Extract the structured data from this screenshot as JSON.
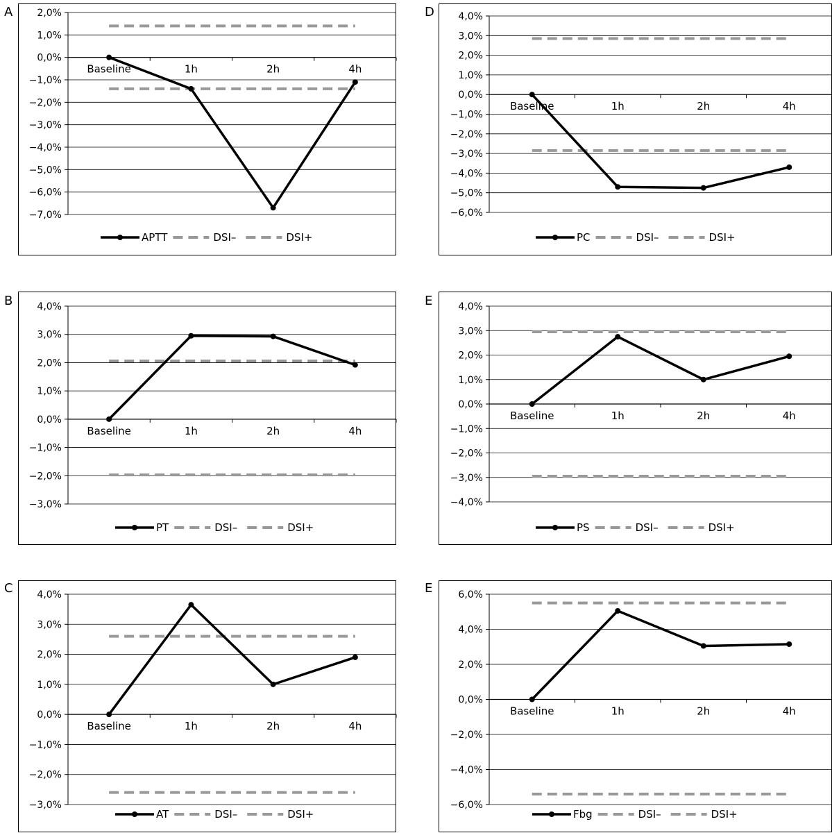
{
  "chart_data": [
    {
      "panel": "A",
      "type": "line",
      "categories": [
        "Baseline",
        "1h",
        "2h",
        "4h"
      ],
      "yticks": [
        "2,0%",
        "1,0%",
        "0,0%",
        "−1,0%",
        "−2,0%",
        "−3,0%",
        "−4,0%",
        "−5,0%",
        "−6,0%",
        "−7,0%"
      ],
      "ylim": [
        -7,
        2
      ],
      "series": [
        {
          "name": "APTT",
          "values": [
            0.0,
            -1.4,
            -6.7,
            -1.1
          ],
          "color": "#000000"
        }
      ],
      "refs": [
        {
          "name": "DSI–",
          "value": -1.4,
          "color": "#999999"
        },
        {
          "name": "DSI+",
          "value": 1.4,
          "color": "#999999"
        }
      ]
    },
    {
      "panel": "B",
      "type": "line",
      "categories": [
        "Baseline",
        "1h",
        "2h",
        "4h"
      ],
      "yticks": [
        "4,0%",
        "3,0%",
        "2,0%",
        "1,0%",
        "0,0%",
        "−1,0%",
        "−2,0%",
        "−3,0%"
      ],
      "ylim": [
        -3,
        4
      ],
      "series": [
        {
          "name": "PT",
          "values": [
            0.0,
            2.95,
            2.93,
            1.92
          ],
          "color": "#000000"
        }
      ],
      "refs": [
        {
          "name": "DSI–",
          "value": -1.97,
          "color": "#999999"
        },
        {
          "name": "DSI+",
          "value": 2.06,
          "color": "#999999"
        }
      ]
    },
    {
      "panel": "C",
      "type": "line",
      "categories": [
        "Baseline",
        "1h",
        "2h",
        "4h"
      ],
      "yticks": [
        "4,0%",
        "3,0%",
        "2,0%",
        "1,0%",
        "0,0%",
        "−1,0%",
        "−2,0%",
        "−3,0%"
      ],
      "ylim": [
        -3,
        4
      ],
      "series": [
        {
          "name": "AT",
          "values": [
            0.0,
            3.65,
            1.0,
            1.9
          ],
          "color": "#000000"
        }
      ],
      "refs": [
        {
          "name": "DSI–",
          "value": -2.6,
          "color": "#999999"
        },
        {
          "name": "DSI+",
          "value": 2.6,
          "color": "#999999"
        }
      ]
    },
    {
      "panel": "D",
      "type": "line",
      "categories": [
        "Baseline",
        "1h",
        "2h",
        "4h"
      ],
      "yticks": [
        "4,0%",
        "3,0%",
        "2,0%",
        "1,0%",
        "0,0%",
        "−1,0%",
        "−2,0%",
        "−3,0%",
        "−4,0%",
        "−5,0%",
        "−6,0%"
      ],
      "ylim": [
        -6,
        4
      ],
      "series": [
        {
          "name": "PC",
          "values": [
            0.0,
            -4.7,
            -4.75,
            -3.7
          ],
          "color": "#000000"
        }
      ],
      "refs": [
        {
          "name": "DSI–",
          "value": -2.85,
          "color": "#999999"
        },
        {
          "name": "DSI+",
          "value": 2.85,
          "color": "#999999"
        }
      ]
    },
    {
      "panel": "E",
      "type": "line",
      "categories": [
        "Baseline",
        "1h",
        "2h",
        "4h"
      ],
      "yticks": [
        "4,0%",
        "3,0%",
        "2,0%",
        "1,0%",
        "0,0%",
        "−1,0%",
        "−2,0%",
        "−3,0%",
        "−4,0%"
      ],
      "ylim": [
        -4,
        4
      ],
      "series": [
        {
          "name": "PS",
          "values": [
            0.0,
            2.75,
            1.0,
            1.95
          ],
          "color": "#000000"
        }
      ],
      "refs": [
        {
          "name": "DSI–",
          "value": -2.95,
          "color": "#999999"
        },
        {
          "name": "DSI+",
          "value": 2.95,
          "color": "#999999"
        }
      ]
    },
    {
      "panel": "E",
      "type": "line",
      "categories": [
        "Baseline",
        "1h",
        "2h",
        "4h"
      ],
      "yticks": [
        "6,0%",
        "4,0%",
        "2,0%",
        "0,0%",
        "−2,0%",
        "−4,0%",
        "−6,0%"
      ],
      "ylim": [
        -6,
        6
      ],
      "series": [
        {
          "name": "Fbg",
          "values": [
            0.0,
            5.05,
            3.05,
            3.15
          ],
          "color": "#000000"
        }
      ],
      "refs": [
        {
          "name": "DSI–",
          "value": -5.4,
          "color": "#999999"
        },
        {
          "name": "DSI+",
          "value": 5.5,
          "color": "#999999"
        }
      ]
    }
  ]
}
